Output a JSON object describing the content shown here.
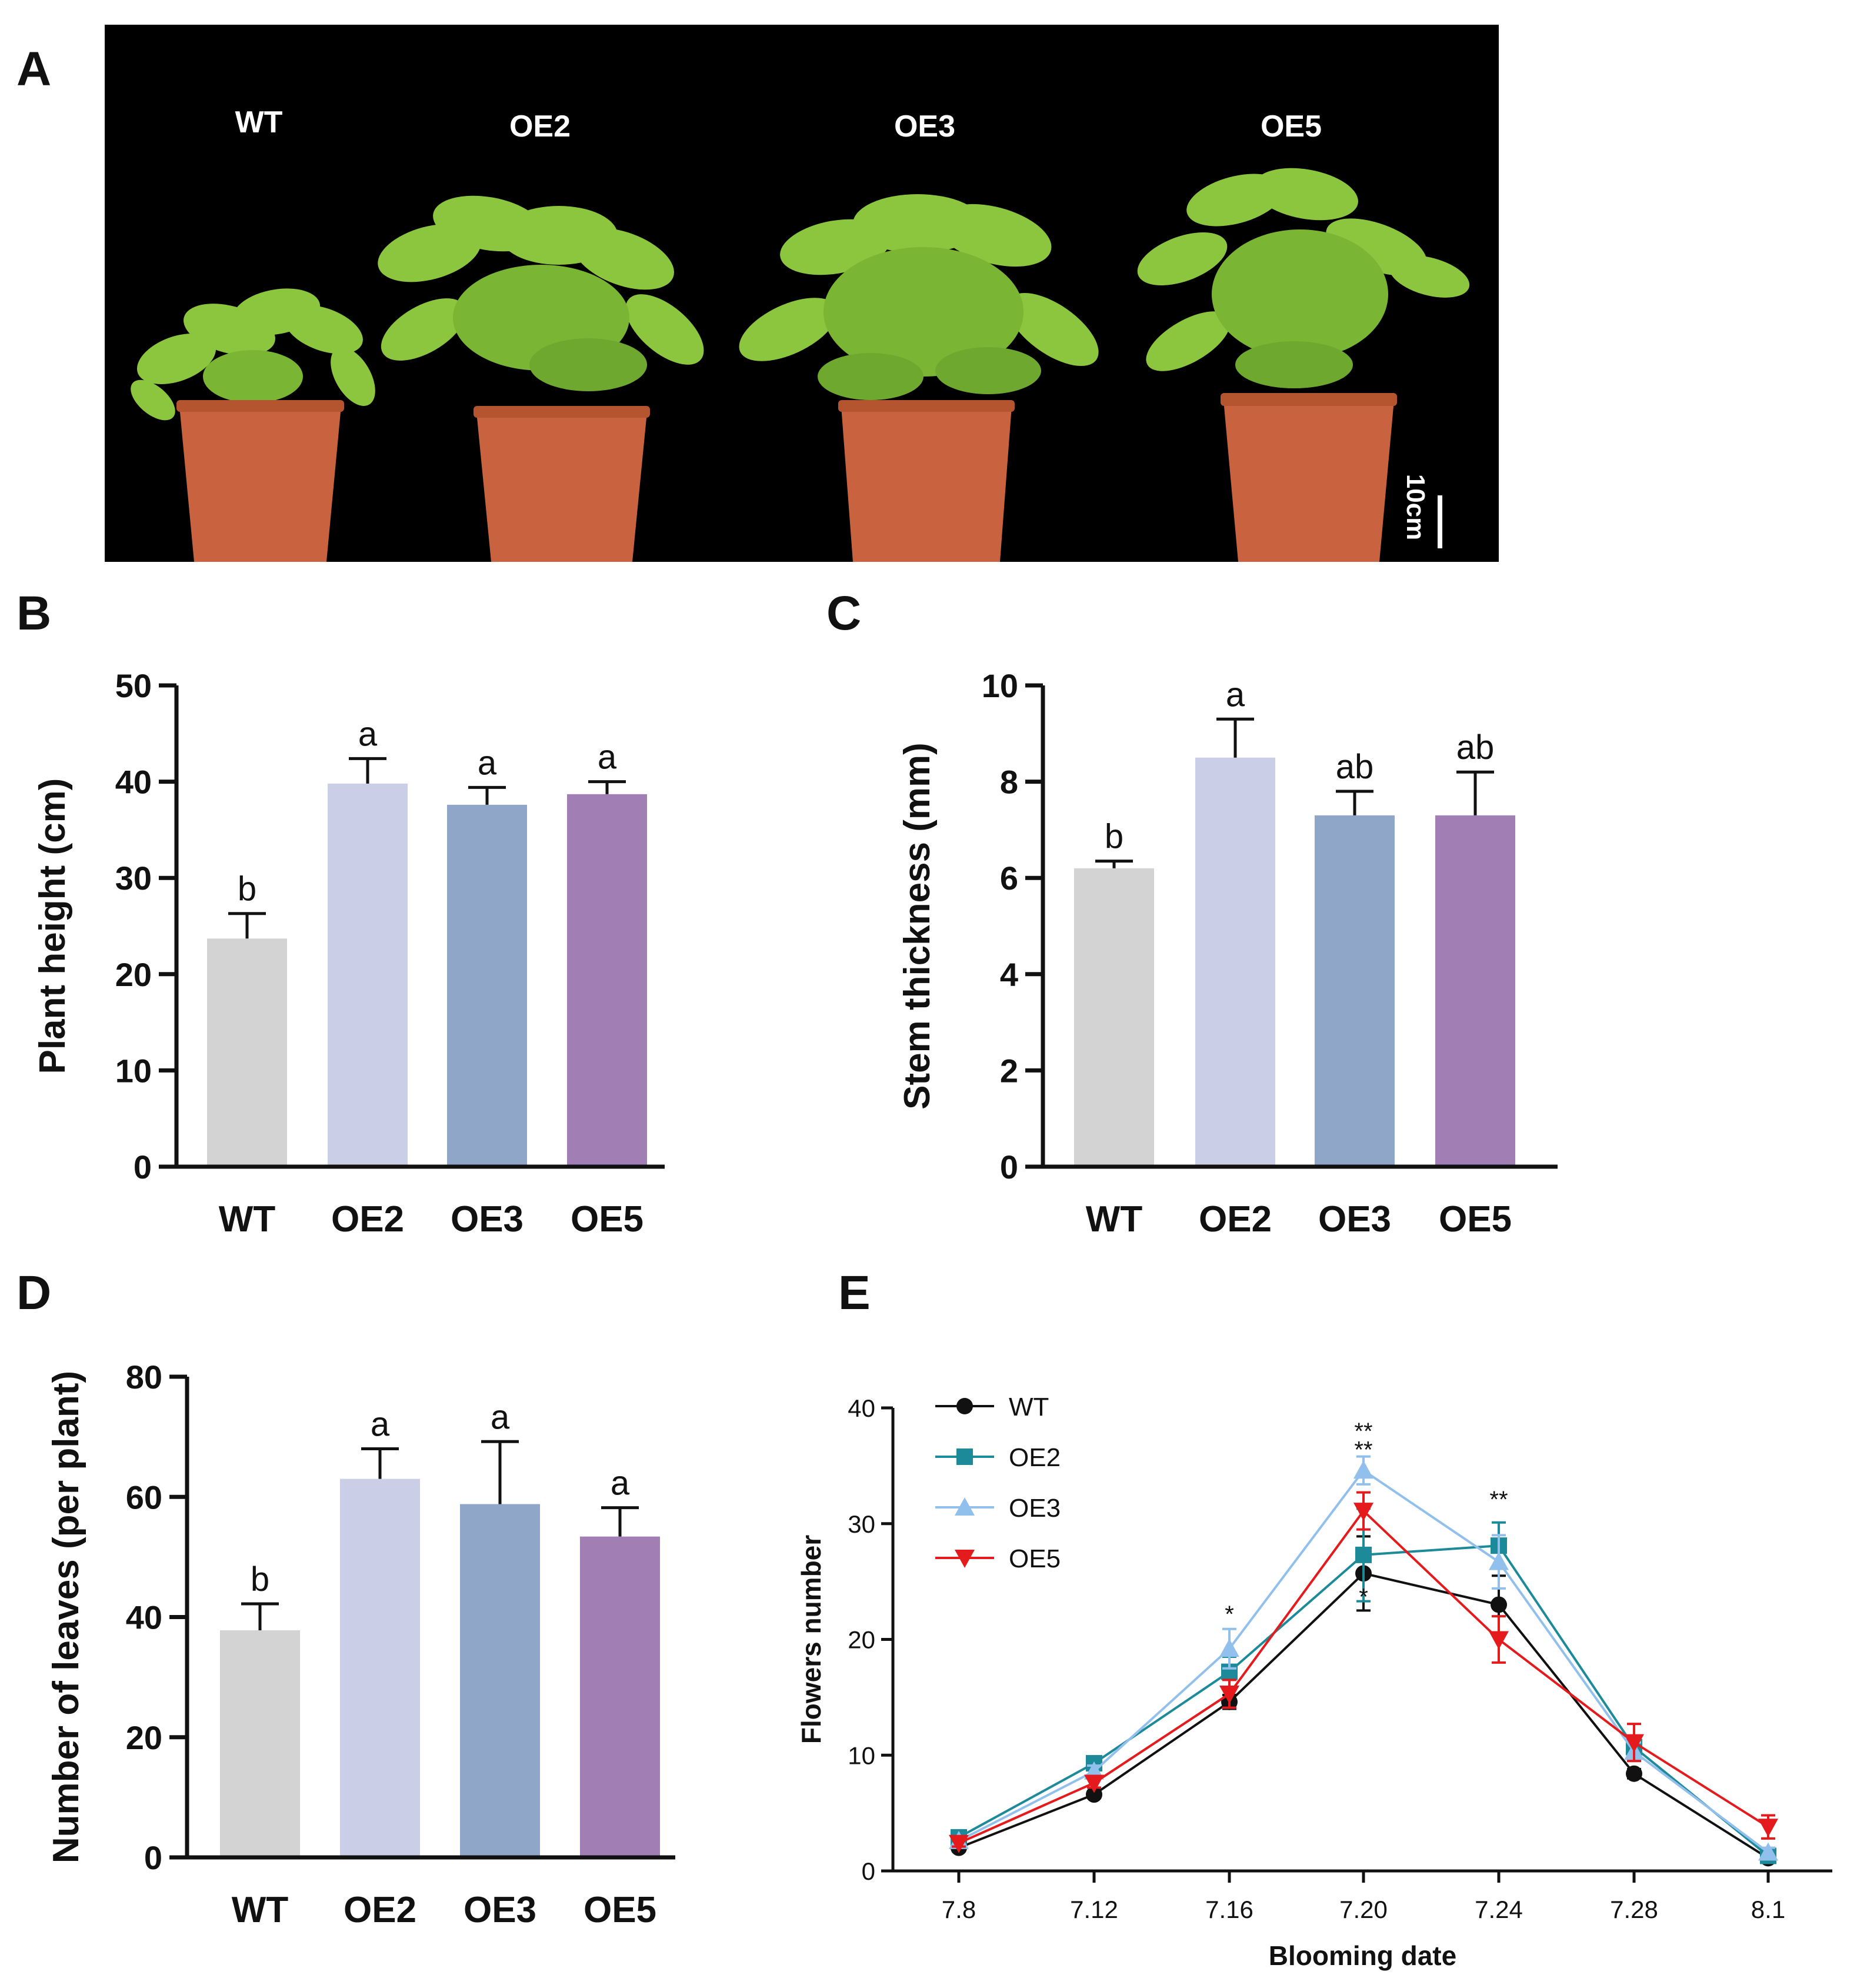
{
  "figure": {
    "panel_letters": [
      "A",
      "B",
      "C",
      "D",
      "E"
    ],
    "photo": {
      "labels": [
        "WT",
        "OE2",
        "OE3",
        "OE5"
      ],
      "scale_bar": "10cm",
      "colors": {
        "background": "#000000",
        "pot": "#c8623f",
        "leaf": "#8cc63f"
      }
    }
  },
  "chart_data": [
    {
      "panel": "B",
      "type": "bar",
      "categories": [
        "WT",
        "OE2",
        "OE3",
        "OE5"
      ],
      "values": [
        23.7,
        39.8,
        37.6,
        38.7
      ],
      "errors": [
        2.6,
        2.6,
        1.8,
        1.3
      ],
      "significance": [
        "b",
        "a",
        "a",
        "a"
      ],
      "colors": [
        "#d3d3d3",
        "#cbcee7",
        "#8fa6c8",
        "#a17fb5"
      ],
      "title": "",
      "xlabel": "",
      "ylabel": "Plant height (cm)",
      "ylim": [
        0,
        50
      ],
      "yticks": [
        0,
        10,
        20,
        30,
        40,
        50
      ]
    },
    {
      "panel": "C",
      "type": "bar",
      "categories": [
        "WT",
        "OE2",
        "OE3",
        "OE5"
      ],
      "values": [
        6.2,
        8.5,
        7.3,
        7.3
      ],
      "errors": [
        0.15,
        0.8,
        0.5,
        0.9
      ],
      "significance": [
        "b",
        "a",
        "ab",
        "ab"
      ],
      "colors": [
        "#d3d3d3",
        "#cbcee7",
        "#8fa6c8",
        "#a17fb5"
      ],
      "title": "",
      "xlabel": "",
      "ylabel": "Stem thickness (mm)",
      "ylim": [
        0,
        10
      ],
      "yticks": [
        0,
        2,
        4,
        6,
        8,
        10
      ]
    },
    {
      "panel": "D",
      "type": "bar",
      "categories": [
        "WT",
        "OE2",
        "OE3",
        "OE5"
      ],
      "values": [
        37.8,
        63.0,
        58.8,
        53.4
      ],
      "errors": [
        4.4,
        5.0,
        10.4,
        4.8
      ],
      "significance": [
        "b",
        "a",
        "a",
        "a"
      ],
      "colors": [
        "#d3d3d3",
        "#cbcee7",
        "#8fa6c8",
        "#a17fb5"
      ],
      "title": "",
      "xlabel": "",
      "ylabel": "Number of leaves (per plant)",
      "ylim": [
        0,
        80
      ],
      "yticks": [
        0,
        20,
        40,
        60,
        80
      ]
    },
    {
      "panel": "E",
      "type": "line",
      "categories": [
        "7.8",
        "7.12",
        "7.16",
        "7.20",
        "7.24",
        "7.28",
        "8.1"
      ],
      "series": [
        {
          "name": "WT",
          "color": "#111111",
          "marker": "circle",
          "values": [
            2.0,
            6.6,
            14.6,
            25.7,
            23.0,
            8.4,
            1.1
          ],
          "errors": [
            0.3,
            0.3,
            0.6,
            3.2,
            2.5,
            0.4,
            0.3
          ]
        },
        {
          "name": "OE2",
          "color": "#1d8a99",
          "marker": "square",
          "values": [
            2.9,
            9.3,
            17.2,
            27.3,
            28.1,
            10.7,
            1.3
          ],
          "errors": [
            0.3,
            0.4,
            1.3,
            4.0,
            2.0,
            0.8,
            0.4
          ]
        },
        {
          "name": "OE3",
          "color": "#92c0ec",
          "marker": "triangle",
          "values": [
            2.6,
            8.6,
            19.2,
            34.6,
            26.7,
            10.3,
            1.6
          ],
          "errors": [
            0.3,
            0.5,
            1.7,
            1.2,
            2.3,
            0.8,
            0.4
          ]
        },
        {
          "name": "OE5",
          "color": "#e41a1c",
          "marker": "triangle-down",
          "values": [
            2.4,
            7.6,
            15.3,
            31.1,
            20.0,
            11.1,
            3.8
          ],
          "errors": [
            0.3,
            0.4,
            1.2,
            1.6,
            2.0,
            1.6,
            1.0
          ]
        }
      ],
      "annotations": [
        {
          "category": "7.16",
          "y": 21.5,
          "text": "*"
        },
        {
          "category": "7.20",
          "y": 37.3,
          "text": "**"
        },
        {
          "category": "7.20",
          "y": 35.7,
          "text": "**"
        },
        {
          "category": "7.20",
          "y": 23.0,
          "text": "*"
        },
        {
          "category": "7.24",
          "y": 31.4,
          "text": "**"
        }
      ],
      "title": "",
      "xlabel": "Blooming date",
      "ylabel": "Flowers number",
      "ylim": [
        0,
        40
      ],
      "yticks": [
        0,
        10,
        20,
        30,
        40
      ],
      "legend_position": "top-left"
    }
  ]
}
